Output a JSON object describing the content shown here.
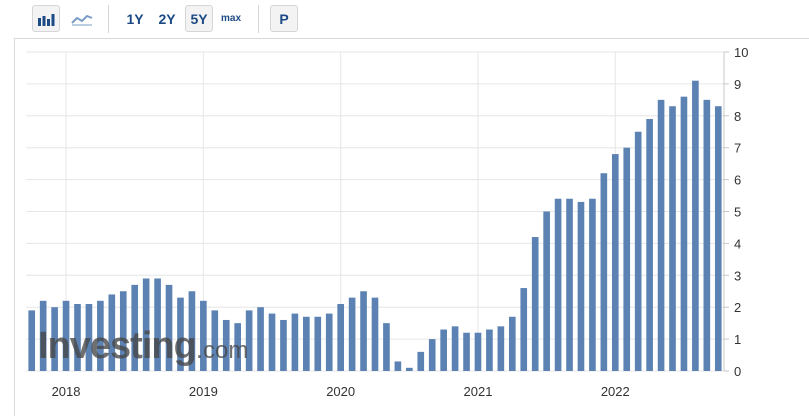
{
  "toolbar": {
    "periods": [
      "1Y",
      "2Y",
      "5Y",
      "max"
    ],
    "selected_period": "5Y",
    "p_label": "P",
    "icons": [
      "bar-chart-icon",
      "line-chart-icon"
    ]
  },
  "watermark": {
    "brand": "Investing",
    "dot": ".",
    "tld": "com"
  },
  "colors": {
    "bar": "#5b82b3",
    "grid": "#e6e6e6",
    "axis": "#c8c8c8",
    "text": "#333333"
  },
  "chart_data": {
    "type": "bar",
    "grid": true,
    "y_axis_side": "right",
    "ylim": [
      0,
      10
    ],
    "yticks": [
      0,
      1,
      2,
      3,
      4,
      5,
      6,
      7,
      8,
      9,
      10
    ],
    "x_tick_labels": [
      {
        "label": "2018",
        "index": 3
      },
      {
        "label": "2019",
        "index": 15
      },
      {
        "label": "2020",
        "index": 27
      },
      {
        "label": "2021",
        "index": 39
      },
      {
        "label": "2022",
        "index": 51
      }
    ],
    "values": [
      1.9,
      2.2,
      2.0,
      2.2,
      2.1,
      2.1,
      2.2,
      2.4,
      2.5,
      2.7,
      2.9,
      2.9,
      2.7,
      2.3,
      2.5,
      2.2,
      1.9,
      1.6,
      1.5,
      1.9,
      2.0,
      1.8,
      1.6,
      1.8,
      1.7,
      1.7,
      1.8,
      2.1,
      2.3,
      2.5,
      2.3,
      1.5,
      0.3,
      0.1,
      0.6,
      1.0,
      1.3,
      1.4,
      1.2,
      1.2,
      1.3,
      1.4,
      1.7,
      2.6,
      4.2,
      5.0,
      5.4,
      5.4,
      5.3,
      5.4,
      6.2,
      6.8,
      7.0,
      7.5,
      7.9,
      8.5,
      8.3,
      8.6,
      9.1,
      8.5,
      8.3
    ]
  }
}
